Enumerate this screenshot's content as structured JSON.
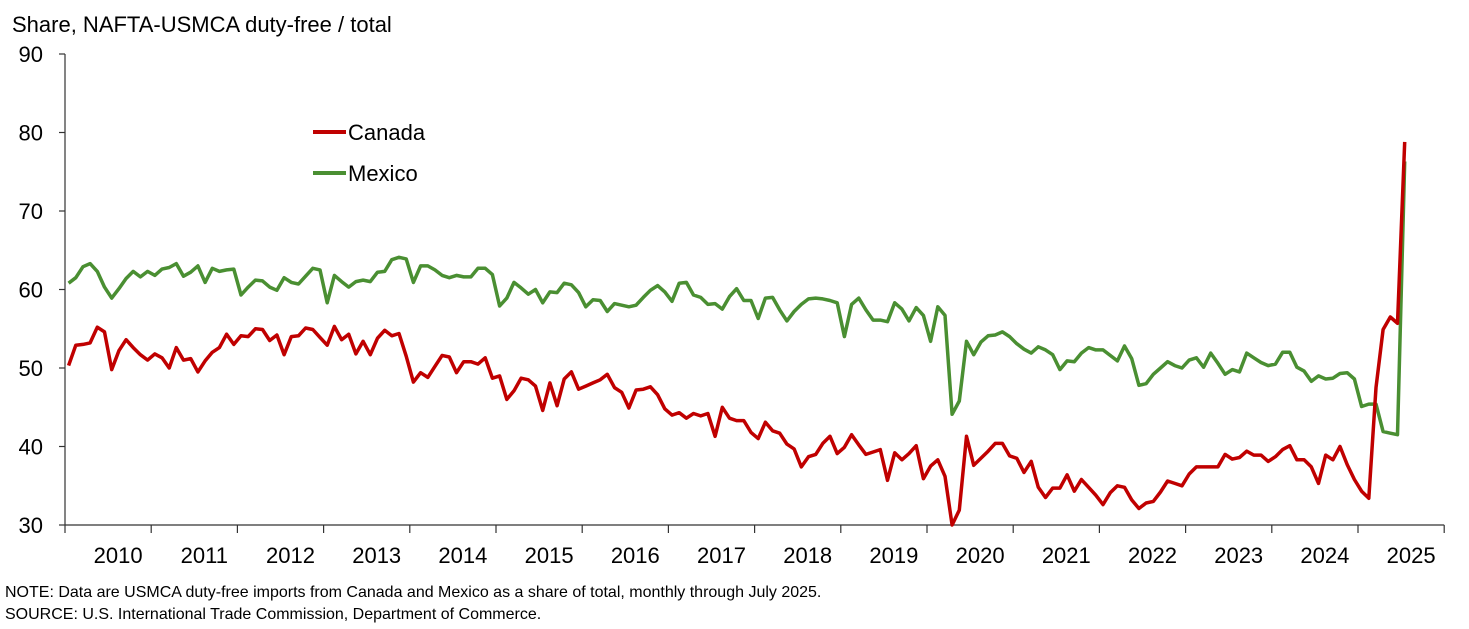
{
  "chart_data": {
    "type": "line",
    "title": "Share, NAFTA-USMCA duty-free / total",
    "xlabel": "",
    "ylabel": "Share, NAFTA-USMCA duty-free / total",
    "ylim": [
      30,
      90
    ],
    "yticks": [
      "30",
      "40",
      "50",
      "60",
      "70",
      "80",
      "90"
    ],
    "xlim": [
      "2010-01",
      "2025-12"
    ],
    "xticks": [
      "2010",
      "2011",
      "2012",
      "2013",
      "2014",
      "2015",
      "2016",
      "2017",
      "2018",
      "2019",
      "2020",
      "2021",
      "2022",
      "2023",
      "2024",
      "2025"
    ],
    "frequency": "monthly",
    "start": "2010-01",
    "grid": false,
    "legend": "upper-left-center",
    "series": [
      {
        "name": "Canada",
        "color": "#c00000",
        "values": [
          50.3,
          52.9,
          53.0,
          53.2,
          55.2,
          54.6,
          49.8,
          52.2,
          53.6,
          52.6,
          51.7,
          51.0,
          51.8,
          51.3,
          50.0,
          52.6,
          51.0,
          51.2,
          49.5,
          50.9,
          52.0,
          52.6,
          54.3,
          53.0,
          54.1,
          54.0,
          55.0,
          54.9,
          53.5,
          54.2,
          51.7,
          54.0,
          54.1,
          55.1,
          54.9,
          53.9,
          52.9,
          55.3,
          53.6,
          54.3,
          51.8,
          53.4,
          51.7,
          53.8,
          54.8,
          54.1,
          54.4,
          51.5,
          48.2,
          49.4,
          48.8,
          50.2,
          51.6,
          51.4,
          49.4,
          50.8,
          50.8,
          50.5,
          51.3,
          48.7,
          49.0,
          46.0,
          47.1,
          48.7,
          48.5,
          47.7,
          44.6,
          48.1,
          45.2,
          48.6,
          49.5,
          47.3,
          47.7,
          48.1,
          48.5,
          49.2,
          47.5,
          46.9,
          44.9,
          47.2,
          47.3,
          47.6,
          46.6,
          44.8,
          44.0,
          44.3,
          43.6,
          44.2,
          43.9,
          44.2,
          41.3,
          45.0,
          43.6,
          43.3,
          43.3,
          41.8,
          41.0,
          43.1,
          42.0,
          41.7,
          40.3,
          39.7,
          37.4,
          38.7,
          39.0,
          40.4,
          41.3,
          39.1,
          39.9,
          41.5,
          40.2,
          39.0,
          39.3,
          39.6,
          35.7,
          39.2,
          38.3,
          39.1,
          40.1,
          35.9,
          37.5,
          38.3,
          36.2,
          30.0,
          31.9,
          41.3,
          37.6,
          38.5,
          39.4,
          40.4,
          40.4,
          38.8,
          38.5,
          36.7,
          38.1,
          34.8,
          33.5,
          34.7,
          34.7,
          36.4,
          34.3,
          35.8,
          34.8,
          33.8,
          32.6,
          34.1,
          35.0,
          34.8,
          33.2,
          32.1,
          32.8,
          33.0,
          34.2,
          35.6,
          35.3,
          35.0,
          36.5,
          37.4,
          37.4,
          37.4,
          37.4,
          39.0,
          38.4,
          38.6,
          39.4,
          38.9,
          38.9,
          38.1,
          38.7,
          39.6,
          40.1,
          38.3,
          38.3,
          37.4,
          35.3,
          38.9,
          38.3,
          40.0,
          37.7,
          35.8,
          34.3,
          33.4,
          47.5,
          54.9,
          56.5,
          55.7,
          78.8
        ]
      },
      {
        "name": "Mexico",
        "color": "#4a8f32",
        "values": [
          60.8,
          61.5,
          62.9,
          63.3,
          62.3,
          60.3,
          58.9,
          60.1,
          61.4,
          62.3,
          61.6,
          62.3,
          61.8,
          62.6,
          62.8,
          63.3,
          61.7,
          62.2,
          63.0,
          60.9,
          62.7,
          62.3,
          62.5,
          62.6,
          59.3,
          60.3,
          61.2,
          61.1,
          60.3,
          59.9,
          61.5,
          60.9,
          60.7,
          61.7,
          62.7,
          62.5,
          58.3,
          61.8,
          61.0,
          60.3,
          61.0,
          61.2,
          61.0,
          62.2,
          62.3,
          63.8,
          64.1,
          63.9,
          60.9,
          63.0,
          63.0,
          62.5,
          61.8,
          61.5,
          61.8,
          61.6,
          61.6,
          62.7,
          62.7,
          61.9,
          57.9,
          58.9,
          60.9,
          60.2,
          59.4,
          60.0,
          58.3,
          59.7,
          59.6,
          60.8,
          60.6,
          59.6,
          57.8,
          58.7,
          58.6,
          57.2,
          58.2,
          58.0,
          57.8,
          58.0,
          59.0,
          59.9,
          60.5,
          59.7,
          58.5,
          60.8,
          60.9,
          59.3,
          59.0,
          58.1,
          58.2,
          57.5,
          59.1,
          60.1,
          58.6,
          58.6,
          56.3,
          58.9,
          59.0,
          57.4,
          56.0,
          57.2,
          58.1,
          58.8,
          58.9,
          58.8,
          58.6,
          58.3,
          54.0,
          58.1,
          58.9,
          57.4,
          56.1,
          56.1,
          55.9,
          58.3,
          57.5,
          56.0,
          57.7,
          56.7,
          53.4,
          57.8,
          56.7,
          44.1,
          45.8,
          53.4,
          51.7,
          53.3,
          54.1,
          54.2,
          54.6,
          54.0,
          53.1,
          52.4,
          51.9,
          52.7,
          52.3,
          51.7,
          49.8,
          50.9,
          50.8,
          51.9,
          52.6,
          52.3,
          52.3,
          51.6,
          50.9,
          52.8,
          51.2,
          47.8,
          48.0,
          49.2,
          50.0,
          50.8,
          50.3,
          50.0,
          51.0,
          51.3,
          50.1,
          51.9,
          50.6,
          49.2,
          49.8,
          49.5,
          51.9,
          51.3,
          50.7,
          50.3,
          50.5,
          52.0,
          52.0,
          50.1,
          49.6,
          48.3,
          49.0,
          48.6,
          48.7,
          49.3,
          49.4,
          48.6,
          45.1,
          45.4,
          45.4,
          41.9,
          41.7,
          41.5,
          76.3
        ]
      }
    ]
  },
  "header": {
    "title": "Share, NAFTA-USMCA duty-free / total"
  },
  "footer": {
    "note": "NOTE: Data are USMCA duty-free imports from Canada and Mexico as a share of total, monthly through July 2025.",
    "source": "SOURCE: U.S. International Trade Commission, Department of Commerce."
  }
}
